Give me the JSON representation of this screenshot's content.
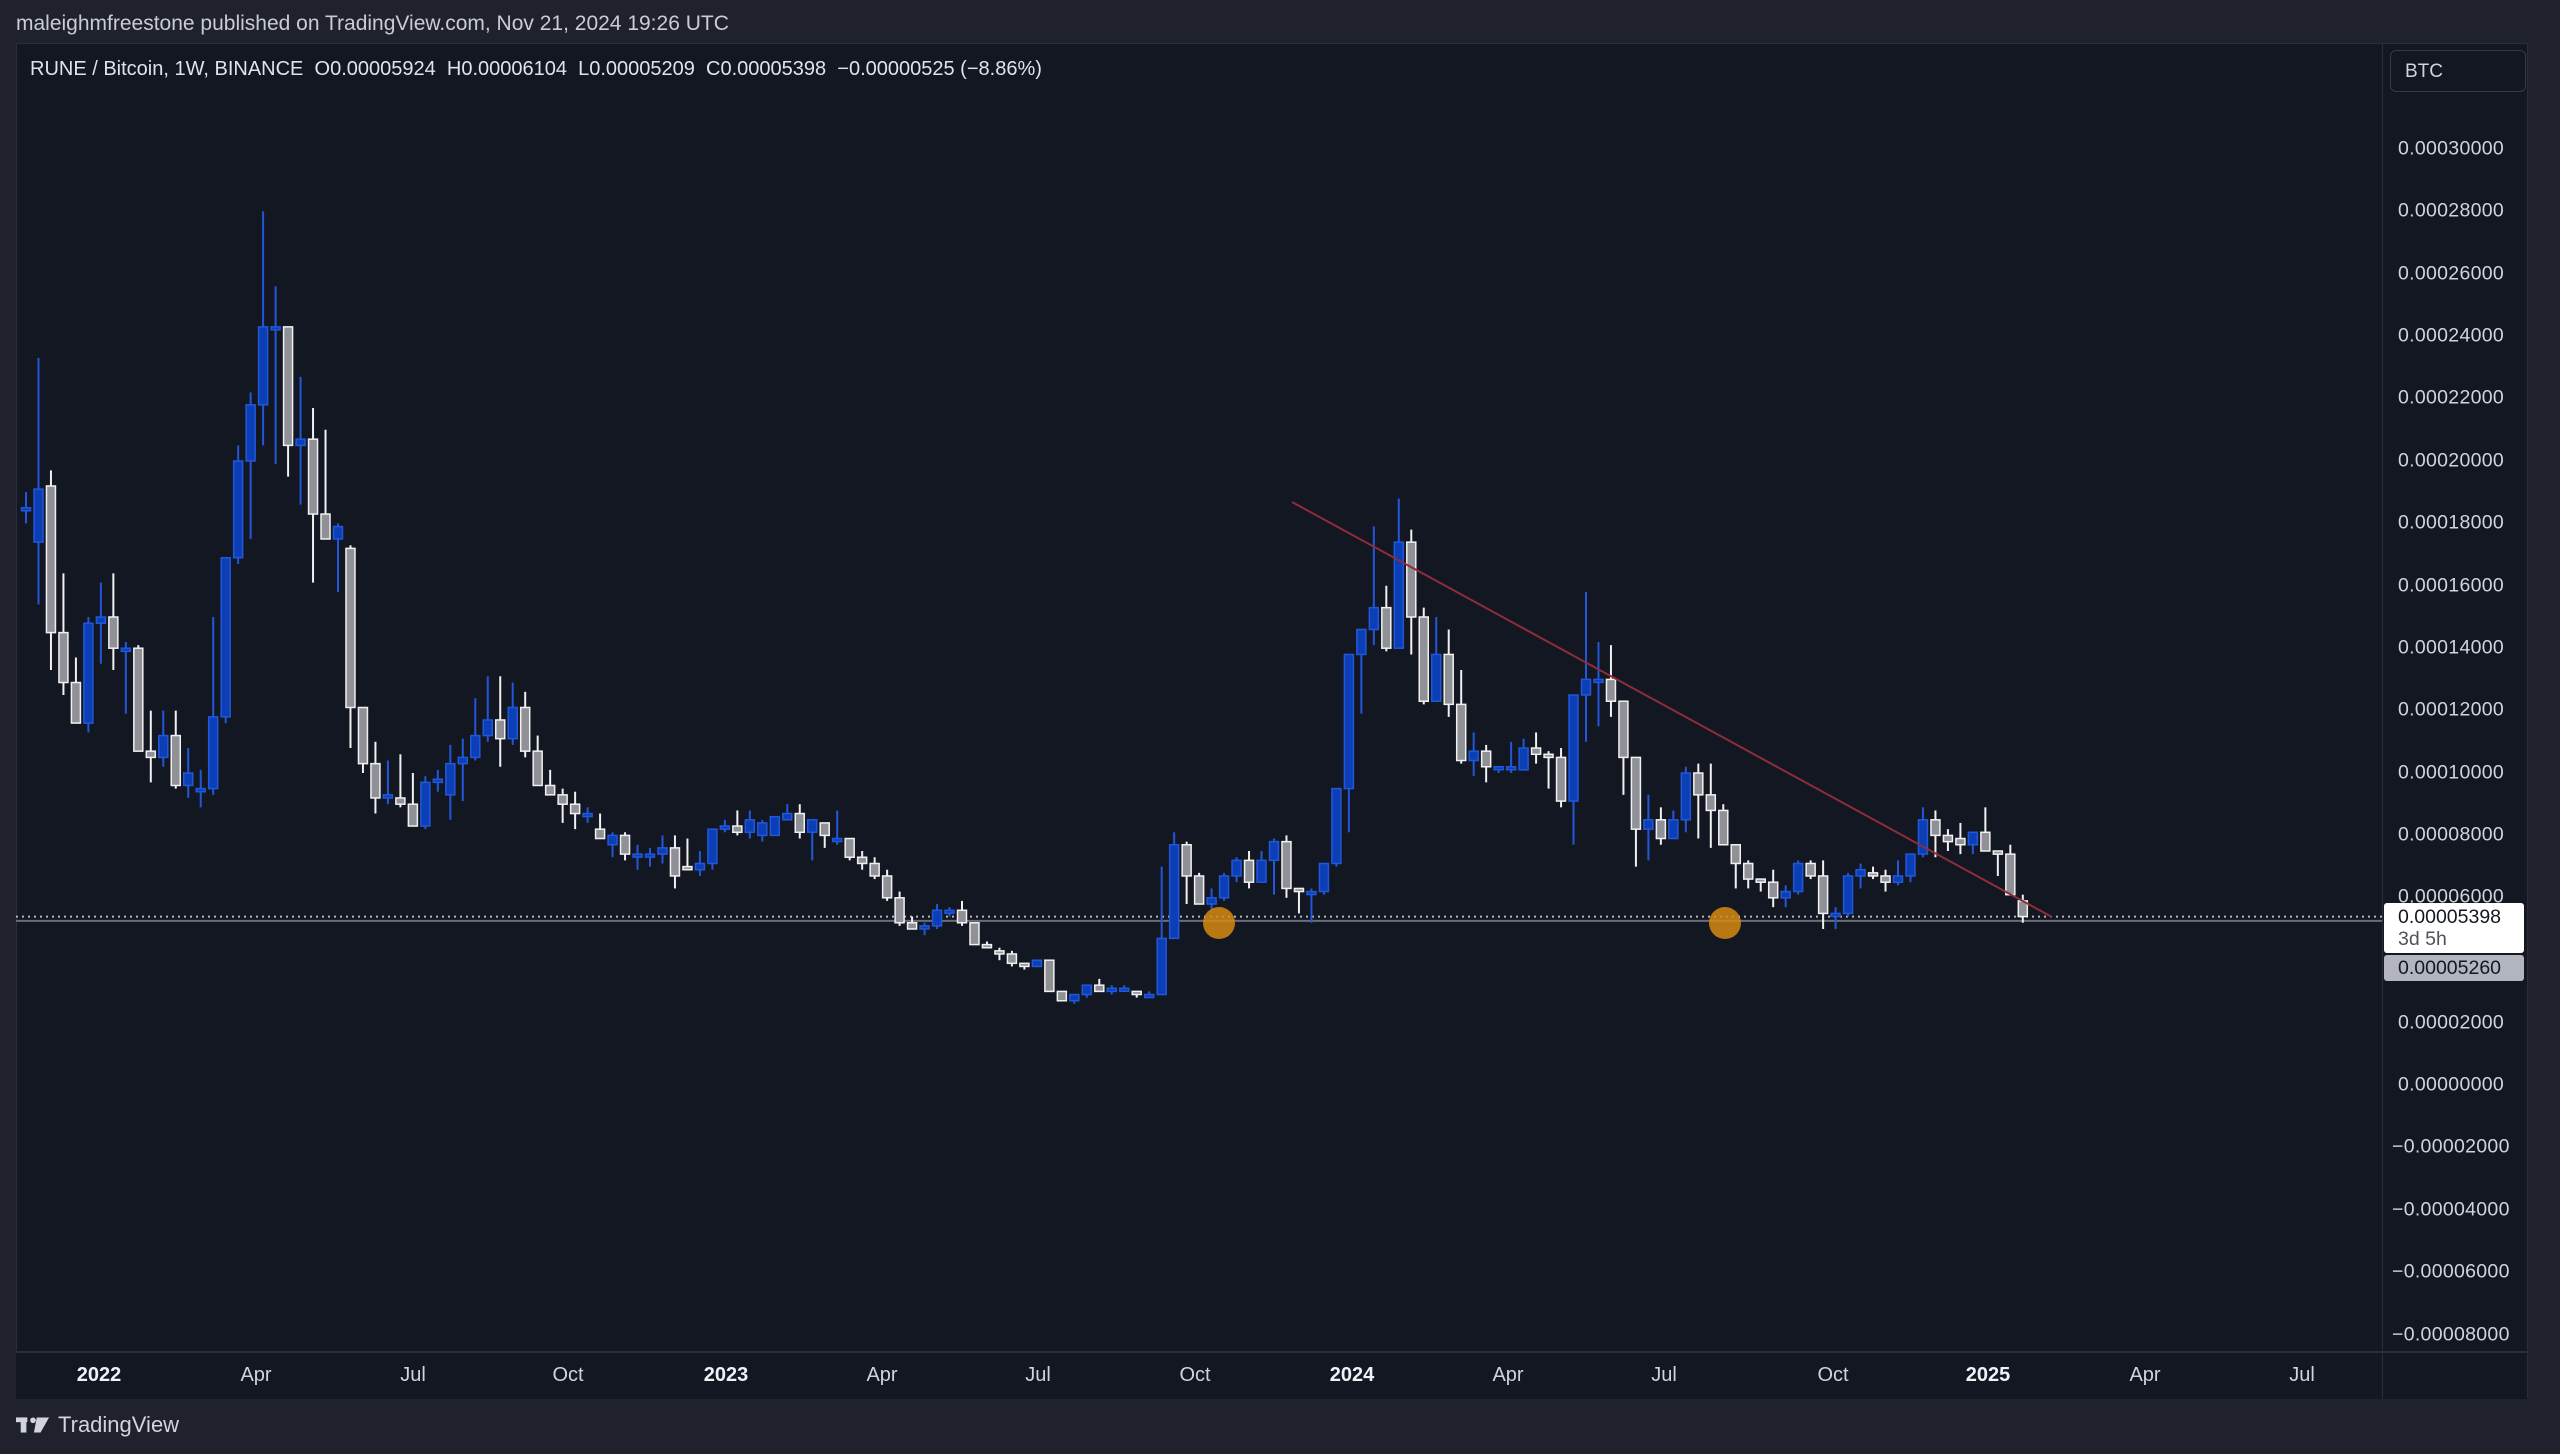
{
  "header": {
    "published_line": "maleighmfreestone published on TradingView.com, Nov 21, 2024 19:26 UTC"
  },
  "legend": {
    "symbol": "RUNE / Bitcoin, 1W, BINANCE",
    "open": "O0.00005924",
    "high": "H0.00006104",
    "low": "L0.00005209",
    "close": "C0.00005398",
    "change": "−0.00000525 (−8.86%)"
  },
  "price_axis": {
    "currency": "BTC",
    "ticks": [
      "0.00030000",
      "0.00028000",
      "0.00026000",
      "0.00024000",
      "0.00022000",
      "0.00020000",
      "0.00018000",
      "0.00016000",
      "0.00014000",
      "0.00012000",
      "0.00010000",
      "0.00008000",
      "0.00006000",
      "0.00002000",
      "0.00000000",
      "−0.00002000",
      "−0.00004000",
      "−0.00006000",
      "−0.00008000"
    ],
    "last_price": "0.00005398",
    "countdown": "3d 5h",
    "horizontal_line_price": "0.00005260"
  },
  "time_axis": {
    "labels": [
      "2022",
      "Apr",
      "Jul",
      "Oct",
      "2023",
      "Apr",
      "Jul",
      "Oct",
      "2024",
      "Apr",
      "Jul",
      "Oct",
      "2025",
      "Apr",
      "Jul"
    ]
  },
  "footer": {
    "brand": "TradingView"
  },
  "colors": {
    "up_fill": "#0c3fb5",
    "up_border": "#2157d9",
    "down_fill": "#8f9196",
    "down_border": "#f0f0f0",
    "trendline": "#8e2d3a",
    "marker": "#d68a12",
    "bg": "#131722"
  },
  "chart_data": {
    "type": "candlestick",
    "title": "RUNE / Bitcoin, 1W, BINANCE",
    "xlabel": "",
    "ylabel": "BTC",
    "ylim": [
      -8.5e-05,
      0.000315
    ],
    "x_ticks": [
      "2022",
      "Apr",
      "Jul",
      "Oct",
      "2023",
      "Apr",
      "Jul",
      "Oct",
      "2024",
      "Apr",
      "Jul",
      "Oct",
      "2025",
      "Apr",
      "Jul"
    ],
    "y_ticks": [
      0.0003,
      0.00028,
      0.00026,
      0.00024,
      0.00022,
      0.0002,
      0.00018,
      0.00016,
      0.00014,
      0.00012,
      0.0001,
      8e-05,
      6e-05,
      2e-05,
      0,
      -2e-05,
      -4e-05,
      -6e-05,
      -8e-05
    ],
    "last": {
      "open": 5.924e-05,
      "high": 6.104e-05,
      "low": 5.209e-05,
      "close": 5.398e-05,
      "change": -5.25e-06,
      "change_pct": -8.86
    },
    "horizontal_line": 5.26e-05,
    "trendline": {
      "from": {
        "date": "2023-12-04",
        "price": 0.000188
      },
      "to": {
        "date": "2025-01-27",
        "price": 5.41e-05
      }
    },
    "markers": [
      {
        "date": "2023-10-16",
        "price": 5.25e-05
      },
      {
        "date": "2024-08-05",
        "price": 5.25e-05
      }
    ],
    "candles": [
      [
        0.000185,
        0.00019,
        0.00018,
        0.000185
      ],
      [
        0.000174,
        0.000233,
        0.000154,
        0.000191
      ],
      [
        0.000192,
        0.000197,
        0.000133,
        0.000145
      ],
      [
        0.000145,
        0.000164,
        0.000125,
        0.000129
      ],
      [
        0.000129,
        0.000137,
        0.000116,
        0.000116
      ],
      [
        0.000116,
        0.00015,
        0.000113,
        0.000148
      ],
      [
        0.000148,
        0.000161,
        0.000135,
        0.00015
      ],
      [
        0.00015,
        0.000164,
        0.000133,
        0.00014
      ],
      [
        0.000139,
        0.000142,
        0.000119,
        0.00014
      ],
      [
        0.00014,
        0.000141,
        0.000107,
        0.000107
      ],
      [
        0.000107,
        0.00012,
        9.7e-05,
        0.000105
      ],
      [
        0.000105,
        0.00012,
        0.000102,
        0.000112
      ],
      [
        0.000112,
        0.00012,
        9.5e-05,
        9.6e-05
      ],
      [
        9.6e-05,
        0.000108,
        9.2e-05,
        0.0001
      ],
      [
        9.4e-05,
        0.000101,
        8.9e-05,
        9.5e-05
      ],
      [
        9.5e-05,
        0.00015,
        9.3e-05,
        0.000118
      ],
      [
        0.000118,
        0.000165,
        0.000116,
        0.000169
      ],
      [
        0.000169,
        0.000205,
        0.000167,
        0.0002
      ],
      [
        0.0002,
        0.000222,
        0.000175,
        0.000218
      ],
      [
        0.000218,
        0.00028,
        0.000205,
        0.000243
      ],
      [
        0.000243,
        0.000256,
        0.000199,
        0.000243
      ],
      [
        0.000243,
        0.000231,
        0.000195,
        0.000205
      ],
      [
        0.000205,
        0.000227,
        0.000186,
        0.000207
      ],
      [
        0.000207,
        0.000217,
        0.000161,
        0.000183
      ],
      [
        0.000183,
        0.00021,
        0.000177,
        0.000175
      ],
      [
        0.000175,
        0.00018,
        0.000158,
        0.000179
      ],
      [
        0.000172,
        0.000173,
        0.000108,
        0.000121
      ],
      [
        0.000121,
        0.000112,
        0.0001,
        0.000103
      ],
      [
        0.000103,
        0.00011,
        8.7e-05,
        9.2e-05
      ],
      [
        9.2e-05,
        0.000104,
        9e-05,
        9.3e-05
      ],
      [
        9.2e-05,
        0.000106,
        8.9e-05,
        9e-05
      ],
      [
        9e-05,
        0.0001,
        8.3e-05,
        8.3e-05
      ],
      [
        8.3e-05,
        9.9e-05,
        8.2e-05,
        9.7e-05
      ],
      [
        9.7e-05,
        0.000101,
        9.4e-05,
        9.8e-05
      ],
      [
        9.3e-05,
        0.000109,
        8.5e-05,
        0.000103
      ],
      [
        0.000103,
        0.000111,
        9.1e-05,
        0.000105
      ],
      [
        0.000105,
        0.000124,
        0.000104,
        0.000112
      ],
      [
        0.000112,
        0.000131,
        0.00011,
        0.000117
      ],
      [
        0.000117,
        0.000131,
        0.000102,
        0.000111
      ],
      [
        0.000111,
        0.000129,
        0.000109,
        0.000121
      ],
      [
        0.000121,
        0.000126,
        0.000105,
        0.000107
      ],
      [
        0.000107,
        0.000112,
        9.6e-05,
        9.6e-05
      ],
      [
        9.6e-05,
        0.000101,
        9.3e-05,
        9.3e-05
      ],
      [
        9.3e-05,
        9.5e-05,
        8.4e-05,
        9e-05
      ],
      [
        9e-05,
        9.4e-05,
        8.2e-05,
        8.7e-05
      ],
      [
        8.7e-05,
        8.9e-05,
        8.4e-05,
        8.7e-05
      ],
      [
        8.2e-05,
        8.7e-05,
        8e-05,
        7.9e-05
      ],
      [
        7.7e-05,
        8.1e-05,
        7.3e-05,
        8e-05
      ],
      [
        8e-05,
        8.1e-05,
        7.2e-05,
        7.4e-05
      ],
      [
        7.4e-05,
        7.7e-05,
        6.9e-05,
        7.4e-05
      ],
      [
        7.4e-05,
        7.6e-05,
        7e-05,
        7.4e-05
      ],
      [
        7.4e-05,
        8e-05,
        7.1e-05,
        7.6e-05
      ],
      [
        7.6e-05,
        8e-05,
        6.3e-05,
        6.7e-05
      ],
      [
        7e-05,
        7.9e-05,
        7.2e-05,
        6.9e-05
      ],
      [
        6.9e-05,
        7.5e-05,
        6.7e-05,
        7.1e-05
      ],
      [
        7.1e-05,
        8e-05,
        6.9e-05,
        8.2e-05
      ],
      [
        8.2e-05,
        8.5e-05,
        8.1e-05,
        8.3e-05
      ],
      [
        8.3e-05,
        8.8e-05,
        8e-05,
        8.1e-05
      ],
      [
        8.1e-05,
        8.8e-05,
        7.9e-05,
        8.5e-05
      ],
      [
        8e-05,
        8.5e-05,
        7.8e-05,
        8.4e-05
      ],
      [
        8e-05,
        8.6e-05,
        8e-05,
        8.6e-05
      ],
      [
        8.5e-05,
        9e-05,
        8.5e-05,
        8.7e-05
      ],
      [
        8.7e-05,
        9e-05,
        7.9e-05,
        8.1e-05
      ],
      [
        8.1e-05,
        8.5e-05,
        7.2e-05,
        8.5e-05
      ],
      [
        8.4e-05,
        8.3e-05,
        7.6e-05,
        8e-05
      ],
      [
        7.9e-05,
        8.8e-05,
        7.7e-05,
        7.9e-05
      ],
      [
        7.9e-05,
        7.9e-05,
        7.2e-05,
        7.3e-05
      ],
      [
        7.3e-05,
        7.5e-05,
        6.9e-05,
        7.1e-05
      ],
      [
        7.1e-05,
        7.3e-05,
        6.6e-05,
        6.7e-05
      ],
      [
        6.7e-05,
        6.9e-05,
        5.9e-05,
        6e-05
      ],
      [
        6e-05,
        6.2e-05,
        5.1e-05,
        5.2e-05
      ],
      [
        5.2e-05,
        5.4e-05,
        5e-05,
        5e-05
      ],
      [
        5e-05,
        5.2e-05,
        4.8e-05,
        5.1e-05
      ],
      [
        5.1e-05,
        5.8e-05,
        5e-05,
        5.6e-05
      ],
      [
        5.6e-05,
        5.7e-05,
        5.4e-05,
        5.6e-05
      ],
      [
        5.6e-05,
        5.9e-05,
        5.1e-05,
        5.2e-05
      ],
      [
        5.2e-05,
        5.2e-05,
        4.5e-05,
        4.5e-05
      ],
      [
        4.5e-05,
        4.6e-05,
        4.4e-05,
        4.4e-05
      ],
      [
        4.3e-05,
        4.4e-05,
        4e-05,
        4.2e-05
      ],
      [
        4.2e-05,
        4.3e-05,
        3.8e-05,
        3.9e-05
      ],
      [
        3.9e-05,
        3.9e-05,
        3.7e-05,
        3.8e-05
      ],
      [
        3.8e-05,
        4e-05,
        3.8e-05,
        4e-05
      ],
      [
        4e-05,
        4e-05,
        3e-05,
        3e-05
      ],
      [
        3e-05,
        3e-05,
        2.7e-05,
        2.7e-05
      ],
      [
        2.7e-05,
        2.9e-05,
        2.6e-05,
        2.9e-05
      ],
      [
        2.9e-05,
        3.2e-05,
        2.8e-05,
        3.2e-05
      ],
      [
        3.2e-05,
        3.4e-05,
        3e-05,
        3e-05
      ],
      [
        3e-05,
        3.2e-05,
        2.9e-05,
        3.1e-05
      ],
      [
        3.1e-05,
        3.2e-05,
        3e-05,
        3.1e-05
      ],
      [
        3e-05,
        3e-05,
        2.8e-05,
        2.9e-05
      ],
      [
        2.9e-05,
        3e-05,
        2.9e-05,
        2.9e-05
      ],
      [
        2.9e-05,
        7e-05,
        2.9e-05,
        4.7e-05
      ],
      [
        4.7e-05,
        8.1e-05,
        5.5e-05,
        7.7e-05
      ],
      [
        7.7e-05,
        7.8e-05,
        5.8e-05,
        6.7e-05
      ],
      [
        6.7e-05,
        6.8e-05,
        5.8e-05,
        5.8e-05
      ],
      [
        5.8e-05,
        6.3e-05,
        5.6e-05,
        6e-05
      ],
      [
        6e-05,
        6.8e-05,
        5.9e-05,
        6.7e-05
      ],
      [
        6.7e-05,
        7.3e-05,
        6.5e-05,
        7.2e-05
      ],
      [
        7.2e-05,
        7.5e-05,
        6.3e-05,
        6.5e-05
      ],
      [
        6.5e-05,
        7.5e-05,
        6.6e-05,
        7.2e-05
      ],
      [
        7.2e-05,
        7.9e-05,
        6.1e-05,
        7.8e-05
      ],
      [
        7.8e-05,
        8e-05,
        6e-05,
        6.3e-05
      ],
      [
        6.3e-05,
        6.3e-05,
        5.5e-05,
        6.2e-05
      ],
      [
        6.2e-05,
        6.3e-05,
        5.2e-05,
        6.2e-05
      ],
      [
        6.2e-05,
        7.1e-05,
        6.1e-05,
        7.1e-05
      ],
      [
        7.1e-05,
        9.3e-05,
        7e-05,
        9.5e-05
      ],
      [
        9.5e-05,
        9.7e-05,
        8.1e-05,
        0.000138
      ],
      [
        0.000138,
        0.000142,
        0.000119,
        0.000146
      ],
      [
        0.000146,
        0.000179,
        0.000141,
        0.000153
      ],
      [
        0.000153,
        0.00016,
        0.000139,
        0.00014
      ],
      [
        0.00014,
        0.000188,
        0.000141,
        0.000174
      ],
      [
        0.000174,
        0.000178,
        0.000138,
        0.00015
      ],
      [
        0.00015,
        0.000153,
        0.000122,
        0.000123
      ],
      [
        0.000123,
        0.00015,
        0.00013,
        0.000138
      ],
      [
        0.000138,
        0.000146,
        0.000118,
        0.000122
      ],
      [
        0.000122,
        0.000133,
        0.000103,
        0.000104
      ],
      [
        0.000104,
        0.000113,
        9.9e-05,
        0.000107
      ],
      [
        0.000107,
        0.000109,
        9.7e-05,
        0.000102
      ],
      [
        0.000102,
        0.000102,
        0.0001,
        0.000102
      ],
      [
        0.000102,
        0.00011,
        0.0001,
        0.000102
      ],
      [
        0.000101,
        0.000111,
        0.000101,
        0.000108
      ],
      [
        0.000108,
        0.000113,
        0.000103,
        0.000106
      ],
      [
        0.000106,
        0.000107,
        9.5e-05,
        0.000105
      ],
      [
        0.000105,
        0.000108,
        8.9e-05,
        9.1e-05
      ],
      [
        9.1e-05,
        0.00012,
        7.7e-05,
        0.000125
      ],
      [
        0.000125,
        0.000158,
        0.00011,
        0.00013
      ],
      [
        0.00013,
        0.000142,
        0.000115,
        0.00013
      ],
      [
        0.00013,
        0.000141,
        0.000118,
        0.000123
      ],
      [
        0.000123,
        0.00012,
        9.3e-05,
        0.000105
      ],
      [
        0.000105,
        0.0001,
        7e-05,
        8.2e-05
      ],
      [
        8.2e-05,
        9.3e-05,
        7.2e-05,
        8.5e-05
      ],
      [
        8.5e-05,
        8.9e-05,
        7.7e-05,
        7.9e-05
      ],
      [
        7.9e-05,
        8.8e-05,
        8e-05,
        8.5e-05
      ],
      [
        8.5e-05,
        0.000102,
        8.1e-05,
        0.0001
      ],
      [
        0.0001,
        0.000103,
        7.9e-05,
        9.3e-05
      ],
      [
        9.3e-05,
        0.000103,
        7.6e-05,
        8.8e-05
      ],
      [
        8.8e-05,
        9e-05,
        7.8e-05,
        7.7e-05
      ],
      [
        7.7e-05,
        7.6e-05,
        6.3e-05,
        7.1e-05
      ],
      [
        7.1e-05,
        7.2e-05,
        6.3e-05,
        6.6e-05
      ],
      [
        6.6e-05,
        6.6e-05,
        6.2e-05,
        6.5e-05
      ],
      [
        6.5e-05,
        6.9e-05,
        5.7e-05,
        6e-05
      ],
      [
        6e-05,
        6.4e-05,
        5.7e-05,
        6.2e-05
      ],
      [
        6.2e-05,
        7.2e-05,
        6.1e-05,
        7.1e-05
      ],
      [
        7.1e-05,
        7.2e-05,
        6.6e-05,
        6.7e-05
      ],
      [
        6.7e-05,
        7.2e-05,
        5e-05,
        5.5e-05
      ],
      [
        5.5e-05,
        5.7e-05,
        5e-05,
        5.5e-05
      ],
      [
        5.5e-05,
        6.8e-05,
        5.4e-05,
        6.7e-05
      ],
      [
        6.7e-05,
        7.1e-05,
        6.3e-05,
        6.9e-05
      ],
      [
        6.8e-05,
        7e-05,
        6.6e-05,
        6.7e-05
      ],
      [
        6.7e-05,
        6.9e-05,
        6.2e-05,
        6.5e-05
      ],
      [
        6.5e-05,
        7.2e-05,
        6.4e-05,
        6.7e-05
      ],
      [
        6.7e-05,
        7.4e-05,
        6.5e-05,
        7.4e-05
      ],
      [
        7.4e-05,
        8.9e-05,
        7.3e-05,
        8.5e-05
      ],
      [
        8.5e-05,
        8.8e-05,
        7.3e-05,
        8e-05
      ],
      [
        8e-05,
        8.2e-05,
        7.5e-05,
        7.8e-05
      ],
      [
        7.9e-05,
        8.4e-05,
        7.4e-05,
        7.7e-05
      ],
      [
        7.7e-05,
        8.1e-05,
        7.4e-05,
        8.1e-05
      ],
      [
        8.1e-05,
        8.9e-05,
        7.6e-05,
        7.5e-05
      ],
      [
        7.5e-05,
        7.5e-05,
        6.7e-05,
        7.4e-05
      ],
      [
        7.4e-05,
        7.7e-05,
        6.1e-05,
        6.1e-05
      ],
      [
        5.9e-05,
        6.1e-05,
        5.2e-05,
        5.4e-05
      ]
    ]
  }
}
